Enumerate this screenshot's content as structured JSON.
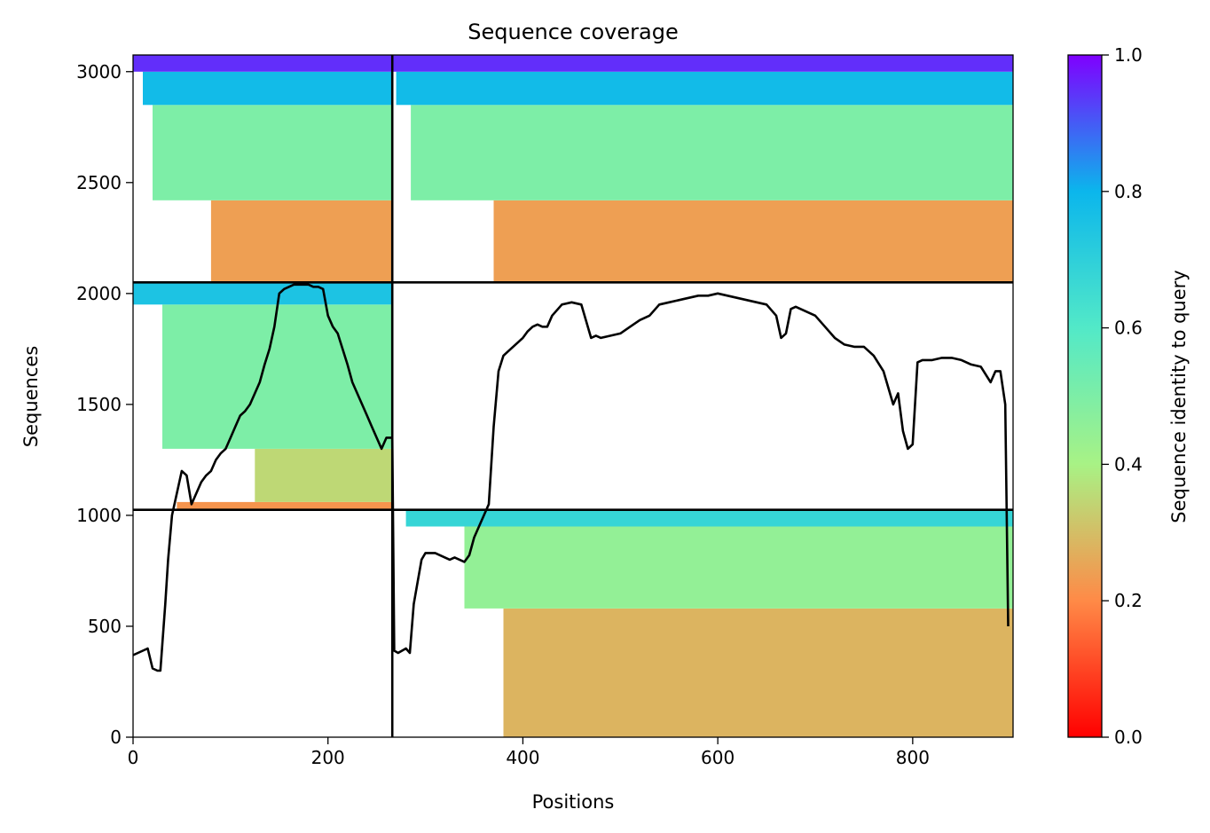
{
  "chart_data": {
    "type": "heatmap",
    "title": "Sequence coverage",
    "xlabel": "Positions",
    "ylabel": "Sequences",
    "colorbar_label": "Sequence identity to query",
    "colormap": "rainbow_r",
    "xlim": [
      0,
      903
    ],
    "ylim": [
      0,
      3075
    ],
    "colorbar_lim": [
      0,
      1
    ],
    "x_ticks": [
      0,
      200,
      400,
      600,
      800
    ],
    "y_ticks": [
      0,
      500,
      1000,
      1500,
      2000,
      2500,
      3000
    ],
    "colorbar_ticks": [
      0.0,
      0.2,
      0.4,
      0.6,
      0.8,
      1.0
    ],
    "x_tick_labels": [
      "0",
      "200",
      "400",
      "600",
      "800"
    ],
    "y_tick_labels": [
      "0",
      "500",
      "1000",
      "1500",
      "2000",
      "2500",
      "3000"
    ],
    "colorbar_tick_labels": [
      "0.0",
      "0.2",
      "0.4",
      "0.6",
      "0.8",
      "1.0"
    ],
    "divider_x": [
      266
    ],
    "divider_y": [
      1025,
      2050
    ],
    "blocks": [
      {
        "name": "",
        "x": [
          0,
          266
        ],
        "y": [
          2050,
          3075
        ],
        "identity_bands": [
          {
            "y": [
              2050,
              2420
            ],
            "identity": 0.24,
            "x": [
              80,
              266
            ]
          },
          {
            "y": [
              2420,
              2850
            ],
            "identity": 0.5,
            "x": [
              20,
              266
            ]
          },
          {
            "y": [
              2850,
              3000
            ],
            "identity": 0.78,
            "x": [
              10,
              266
            ]
          },
          {
            "y": [
              3000,
              3075
            ],
            "identity": 0.95,
            "x": [
              0,
              266
            ]
          }
        ]
      },
      {
        "name": "",
        "x": [
          266,
          903
        ],
        "y": [
          2050,
          3075
        ],
        "identity_bands": [
          {
            "y": [
              2050,
              2420
            ],
            "identity": 0.24,
            "x": [
              370,
              903
            ]
          },
          {
            "y": [
              2420,
              2850
            ],
            "identity": 0.5,
            "x": [
              285,
              903
            ]
          },
          {
            "y": [
              2850,
              3000
            ],
            "identity": 0.78,
            "x": [
              270,
              903
            ]
          },
          {
            "y": [
              3000,
              3075
            ],
            "identity": 0.95,
            "x": [
              266,
              903
            ]
          }
        ]
      },
      {
        "name": "",
        "x": [
          0,
          266
        ],
        "y": [
          1025,
          2050
        ],
        "identity_bands": [
          {
            "y": [
              1025,
              1060
            ],
            "identity": 0.22,
            "x": [
              45,
              266
            ]
          },
          {
            "y": [
              1060,
              1300
            ],
            "identity": 0.35,
            "x": [
              125,
              266
            ]
          },
          {
            "y": [
              1300,
              1950
            ],
            "identity": 0.5,
            "x": [
              30,
              266
            ]
          },
          {
            "y": [
              1950,
              2050
            ],
            "identity": 0.75,
            "x": [
              0,
              266
            ]
          }
        ]
      },
      {
        "name": "",
        "x": [
          266,
          903
        ],
        "y": [
          0,
          1025
        ],
        "identity_bands": [
          {
            "y": [
              0,
              580
            ],
            "identity": 0.28,
            "x": [
              380,
              903
            ]
          },
          {
            "y": [
              580,
              950
            ],
            "identity": 0.45,
            "x": [
              340,
              903
            ]
          },
          {
            "y": [
              950,
              1025
            ],
            "identity": 0.68,
            "x": [
              280,
              903
            ]
          }
        ]
      }
    ],
    "coverage_line": {
      "x": [
        0,
        5,
        10,
        15,
        20,
        25,
        28,
        30,
        33,
        36,
        40,
        45,
        50,
        55,
        60,
        65,
        70,
        75,
        80,
        85,
        90,
        95,
        100,
        105,
        110,
        115,
        120,
        125,
        130,
        135,
        140,
        145,
        150,
        155,
        160,
        165,
        170,
        175,
        180,
        185,
        190,
        195,
        200,
        205,
        210,
        215,
        220,
        225,
        230,
        235,
        240,
        245,
        250,
        255,
        260,
        266,
        268,
        272,
        276,
        280,
        284,
        288,
        292,
        296,
        300,
        305,
        310,
        315,
        320,
        325,
        330,
        335,
        340,
        345,
        350,
        355,
        360,
        365,
        370,
        375,
        380,
        385,
        390,
        395,
        400,
        405,
        410,
        415,
        420,
        425,
        430,
        440,
        450,
        460,
        470,
        475,
        480,
        490,
        500,
        510,
        520,
        530,
        540,
        550,
        560,
        570,
        580,
        590,
        600,
        610,
        620,
        630,
        640,
        650,
        660,
        665,
        670,
        675,
        680,
        690,
        700,
        710,
        720,
        730,
        740,
        750,
        760,
        770,
        780,
        785,
        790,
        795,
        800,
        805,
        810,
        820,
        830,
        840,
        850,
        860,
        870,
        880,
        885,
        890,
        895,
        898,
        900,
        903
      ],
      "y": [
        370,
        380,
        390,
        400,
        310,
        300,
        300,
        420,
        600,
        800,
        1000,
        1100,
        1200,
        1180,
        1050,
        1100,
        1150,
        1180,
        1200,
        1250,
        1280,
        1300,
        1350,
        1400,
        1450,
        1470,
        1500,
        1550,
        1600,
        1680,
        1750,
        1850,
        2000,
        2020,
        2030,
        2040,
        2040,
        2040,
        2040,
        2030,
        2030,
        2020,
        1900,
        1850,
        1820,
        1750,
        1680,
        1600,
        1550,
        1500,
        1450,
        1400,
        1350,
        1300,
        1350,
        1350,
        390,
        380,
        390,
        400,
        380,
        600,
        700,
        800,
        830,
        830,
        830,
        820,
        810,
        800,
        810,
        800,
        790,
        820,
        900,
        950,
        1000,
        1050,
        1400,
        1650,
        1720,
        1740,
        1760,
        1780,
        1800,
        1830,
        1850,
        1860,
        1850,
        1850,
        1900,
        1950,
        1960,
        1950,
        1800,
        1810,
        1800,
        1810,
        1820,
        1850,
        1880,
        1900,
        1950,
        1960,
        1970,
        1980,
        1990,
        1990,
        2000,
        1990,
        1980,
        1970,
        1960,
        1950,
        1900,
        1800,
        1820,
        1930,
        1940,
        1920,
        1900,
        1850,
        1800,
        1770,
        1760,
        1760,
        1720,
        1650,
        1500,
        1550,
        1380,
        1300,
        1320,
        1690,
        1700,
        1700,
        1710,
        1710,
        1700,
        1680,
        1670,
        1600,
        1650,
        1650,
        1500,
        500
      ]
    }
  }
}
